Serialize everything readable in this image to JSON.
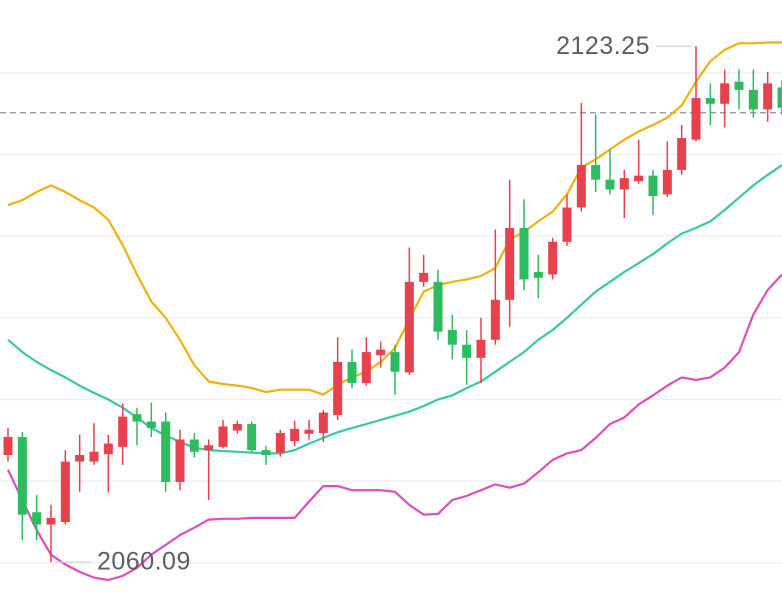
{
  "chart_data": {
    "type": "candlestick",
    "open": [
      2073.2,
      2075.4,
      2066.2,
      2064.7,
      2065.0,
      2072.4,
      2072.4,
      2073.3,
      2074.2,
      2078.2,
      2077.3,
      2077.3,
      2069.9,
      2075.1,
      2073.8,
      2074.2,
      2076.2,
      2077.0,
      2073.8,
      2073.5,
      2074.9,
      2075.8,
      2075.9,
      2078.1,
      2084.6,
      2082.0,
      2085.4,
      2085.8,
      2083.3,
      2094.4,
      2094.4,
      2088.5,
      2086.7,
      2085.1,
      2087.3,
      2092.2,
      2101.0,
      2095.6,
      2095.3,
      2099.3,
      2103.5,
      2108.7,
      2106.9,
      2105.7,
      2106.7,
      2107.4,
      2105.1,
      2108.1,
      2111.8,
      2116.9,
      2116.2,
      2118.9,
      2117.9,
      2115.5,
      2118.2
    ],
    "high": [
      2076.5,
      2076.0,
      2068.3,
      2067.1,
      2073.8,
      2075.7,
      2077.1,
      2075.7,
      2079.5,
      2079.0,
      2079.6,
      2078.4,
      2076.3,
      2075.9,
      2075.1,
      2077.5,
      2077.4,
      2077.3,
      2074.3,
      2076.3,
      2077.4,
      2077.5,
      2078.7,
      2087.6,
      2086.1,
      2087.6,
      2087.1,
      2086.7,
      2098.6,
      2097.7,
      2095.9,
      2090.4,
      2088.5,
      2090.0,
      2100.8,
      2106.9,
      2104.5,
      2097.7,
      2099.8,
      2105.1,
      2116.3,
      2114.9,
      2110.6,
      2108.1,
      2111.8,
      2108.1,
      2111.6,
      2113.6,
      2123.25,
      2118.7,
      2120.4,
      2120.4,
      2120.4,
      2120.1,
      2119.1
    ],
    "low": [
      2072.4,
      2062.8,
      2062.8,
      2060.09,
      2064.7,
      2068.7,
      2072.0,
      2068.6,
      2072.0,
      2074.4,
      2075.4,
      2068.7,
      2068.9,
      2072.9,
      2067.7,
      2074.0,
      2075.8,
      2073.6,
      2072.0,
      2073.0,
      2074.3,
      2075.1,
      2074.8,
      2077.5,
      2081.4,
      2081.7,
      2083.9,
      2080.6,
      2083.0,
      2093.8,
      2087.3,
      2084.9,
      2081.8,
      2082.0,
      2086.7,
      2088.9,
      2093.4,
      2092.4,
      2094.7,
      2098.8,
      2103.0,
      2105.4,
      2105.1,
      2102.2,
      2106.4,
      2102.6,
      2104.8,
      2107.5,
      2111.6,
      2113.6,
      2113.3,
      2115.5,
      2114.5,
      2114.0,
      2114.9
    ],
    "close": [
      2075.4,
      2065.9,
      2064.7,
      2065.5,
      2072.4,
      2073.2,
      2073.6,
      2074.6,
      2077.9,
      2077.3,
      2076.5,
      2069.9,
      2075.1,
      2073.6,
      2074.4,
      2076.7,
      2077.0,
      2073.8,
      2073.2,
      2075.9,
      2076.4,
      2076.3,
      2078.4,
      2084.6,
      2082.0,
      2085.8,
      2086.1,
      2083.4,
      2094.4,
      2095.5,
      2088.3,
      2086.7,
      2085.1,
      2087.3,
      2092.2,
      2101.0,
      2094.7,
      2094.9,
      2099.3,
      2103.5,
      2108.7,
      2106.9,
      2105.7,
      2107.1,
      2107.4,
      2104.9,
      2108.1,
      2112.0,
      2116.9,
      2116.2,
      2118.7,
      2117.9,
      2115.5,
      2118.7,
      2115.7
    ],
    "up_color": "#e8414e",
    "down_color": "#2dbb5e",
    "lines": [
      {
        "color": "#f0b10d",
        "values": [
          2103.8,
          2104.4,
          2105.4,
          2106.2,
          2105.4,
          2104.4,
          2103.5,
          2102.0,
          2098.9,
          2095.3,
          2092.0,
          2090.0,
          2087.3,
          2084.2,
          2082.2,
          2081.9,
          2081.7,
          2081.4,
          2080.9,
          2081.2,
          2081.2,
          2081.2,
          2080.6,
          2081.8,
          2082.7,
          2083.4,
          2084.6,
          2086.3,
          2089.8,
          2093.2,
          2094.0,
          2094.4,
          2094.7,
          2095.1,
          2096.1,
          2099.6,
          2100.5,
          2101.8,
          2103.0,
          2105.1,
          2108.4,
          2109.4,
          2110.6,
          2111.8,
          2112.8,
          2113.6,
          2114.5,
          2116.0,
          2118.9,
          2121.4,
          2122.8,
          2123.6,
          2123.6,
          2123.7,
          2123.7
        ]
      },
      {
        "color": "#35c9a4",
        "values": [
          2087.3,
          2085.8,
          2084.6,
          2083.6,
          2082.7,
          2081.7,
          2080.8,
          2080.0,
          2079.0,
          2077.8,
          2076.5,
          2075.6,
          2074.8,
          2074.1,
          2073.8,
          2073.7,
          2073.6,
          2073.5,
          2073.4,
          2073.4,
          2073.8,
          2074.6,
          2075.3,
          2076.0,
          2076.5,
          2077.0,
          2077.5,
          2078.0,
          2078.5,
          2079.2,
          2080.0,
          2080.5,
          2081.4,
          2082.2,
          2083.4,
          2084.6,
          2085.8,
          2087.3,
          2088.5,
          2090.0,
          2091.6,
          2093.2,
          2094.4,
          2095.6,
          2096.7,
          2097.8,
          2099.1,
          2100.3,
          2101.0,
          2101.8,
          2103.2,
          2104.7,
          2106.2,
          2107.5,
          2108.7
        ]
      },
      {
        "color": "#e04cbd",
        "values": [
          2071.4,
          2067.7,
          2064.0,
          2061.0,
          2059.8,
          2058.9,
          2058.2,
          2057.9,
          2058.4,
          2059.4,
          2061.0,
          2062.2,
          2063.4,
          2064.3,
          2065.3,
          2065.4,
          2065.4,
          2065.5,
          2065.5,
          2065.5,
          2065.5,
          2067.5,
          2069.4,
          2069.4,
          2068.9,
          2068.9,
          2068.9,
          2068.7,
          2067.1,
          2065.9,
          2066.0,
          2067.7,
          2068.2,
          2068.9,
          2069.6,
          2069.2,
          2069.7,
          2071.1,
          2072.6,
          2073.4,
          2073.8,
          2075.3,
          2077.0,
          2077.8,
          2079.4,
          2080.5,
          2081.7,
          2082.7,
          2082.4,
          2082.7,
          2083.9,
          2085.8,
          2090.4,
          2093.4,
          2095.3
        ]
      }
    ],
    "high_label": 2123.25,
    "low_label": 2060.09,
    "price_line": 2115.1,
    "ylim": [
      2055.7,
      2128.9
    ],
    "yticks": [
      2060,
      2070,
      2080,
      2090,
      2100,
      2110,
      2120
    ],
    "grid": true
  }
}
